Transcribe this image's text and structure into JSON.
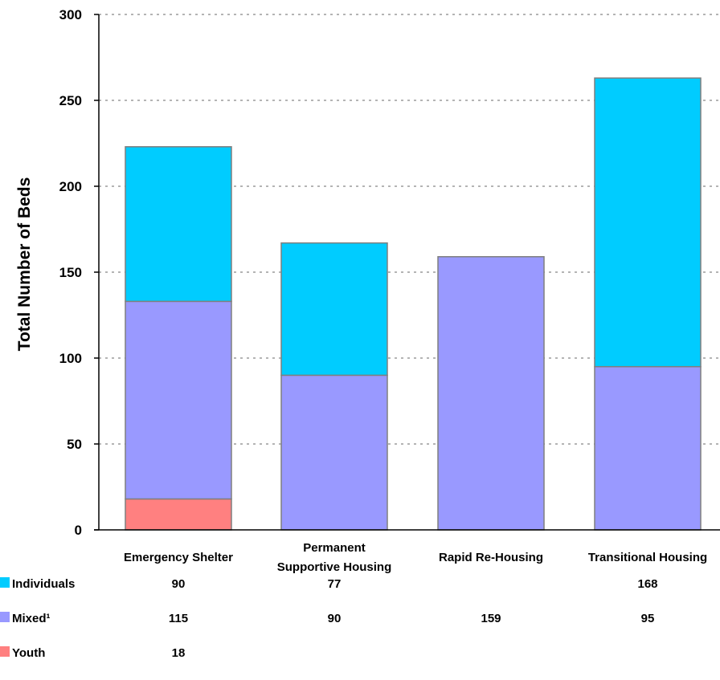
{
  "chart_data": {
    "type": "bar",
    "stacked": true,
    "categories": [
      "Emergency Shelter",
      "Permanent Supportive Housing",
      "Rapid Re-Housing",
      "Transitional Housing"
    ],
    "category_label_lines": [
      [
        "Emergency Shelter"
      ],
      [
        "Permanent",
        "Supportive Housing"
      ],
      [
        "Rapid Re-Housing"
      ],
      [
        "Transitional Housing"
      ]
    ],
    "series": [
      {
        "name": "Youth",
        "color": "#ff8080",
        "values": [
          18,
          null,
          null,
          null
        ],
        "labels": [
          "18",
          "",
          "",
          ""
        ]
      },
      {
        "name": "Mixed¹",
        "color": "#9999ff",
        "values": [
          115,
          90,
          159,
          95
        ],
        "labels": [
          "115",
          "90",
          "159",
          "95"
        ]
      },
      {
        "name": "Individuals",
        "color": "#00ccff",
        "values": [
          90,
          77,
          null,
          168
        ],
        "labels": [
          "90",
          "77",
          "",
          "168"
        ]
      }
    ],
    "table_row_order": [
      "Individuals",
      "Mixed¹",
      "Youth"
    ],
    "ylabel": "Total Number of Beds",
    "xlabel": "",
    "ylim": [
      0,
      300
    ],
    "yticks": [
      0,
      50,
      100,
      150,
      200,
      250,
      300
    ],
    "grid": true,
    "legend": "data-table"
  }
}
